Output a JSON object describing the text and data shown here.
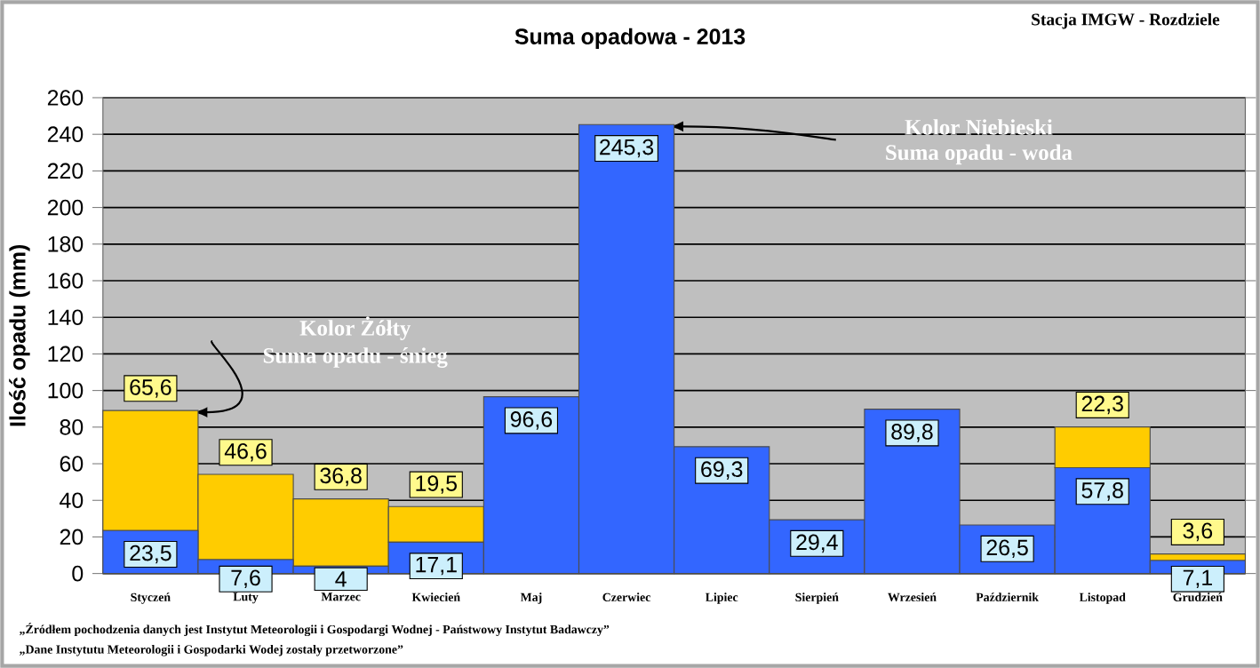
{
  "chart_data": {
    "type": "bar",
    "stacked": true,
    "title": "Suma opadowa - 2013",
    "subtitle": "Stacja IMGW - Rozdziele",
    "ylabel": "Ilość opadu (mm)",
    "categories": [
      "Styczeń",
      "Luty",
      "Marzec",
      "Kwiecień",
      "Maj",
      "Czerwiec",
      "Lipiec",
      "Sierpień",
      "Wrzesień",
      "Październik",
      "Listopad",
      "Grudzień"
    ],
    "series": [
      {
        "color": "#3366ff",
        "values": [
          23.5,
          7.6,
          4,
          17.1,
          96.6,
          245.3,
          69.3,
          29.4,
          89.8,
          26.5,
          57.8,
          7.1
        ],
        "value_labels": [
          "23,5",
          "7,6",
          "4",
          "17,1",
          "96,6",
          "245,3",
          "69,3",
          "29,4",
          "89,8",
          "26,5",
          "57,8",
          "7,1"
        ]
      },
      {
        "color": "#ffcc00",
        "values": [
          65.6,
          46.6,
          36.8,
          19.5,
          null,
          null,
          null,
          null,
          null,
          null,
          22.3,
          3.6
        ],
        "value_labels": [
          "65,6",
          "46,6",
          "36,8",
          "19,5",
          null,
          null,
          null,
          null,
          null,
          null,
          "22,3",
          "3,6"
        ]
      }
    ],
    "ylim": [
      0,
      260
    ],
    "yticks": [
      0,
      20,
      40,
      60,
      80,
      100,
      120,
      140,
      160,
      180,
      200,
      220,
      240,
      260
    ],
    "grid": "y",
    "annotations": [
      "Kolor Niebieski",
      "Suma opadu - woda",
      "Kolor Żółty",
      "Suma opadu - śnieg",
      "„Źródłem pochodzenia danych jest Instytut Meteorologii i Gospodargi Wodnej - Państwowy Instytut Badawczy”",
      "„Dane Instytutu Meteorologii i Gospodarki Wodej zostały przetworzone”"
    ]
  }
}
